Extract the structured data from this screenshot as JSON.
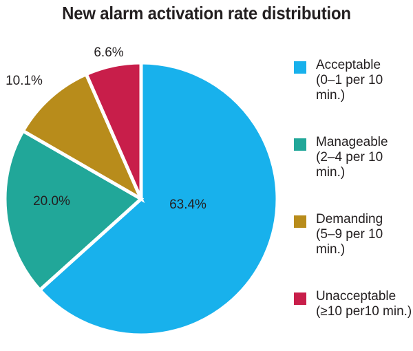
{
  "chart_data": {
    "type": "pie",
    "title": "New alarm activation rate distribution",
    "slices": [
      {
        "name": "Acceptable",
        "range": "(0–1 per 10 min.)",
        "value": 63.4,
        "label": "63.4%",
        "color": "#18b1ec"
      },
      {
        "name": "Manageable",
        "range": "(2–4 per 10 min.)",
        "value": 20.0,
        "label": "20.0%",
        "color": "#21a799"
      },
      {
        "name": "Demanding",
        "range": "(5–9 per 10 min.)",
        "value": 10.1,
        "label": "10.1%",
        "color": "#b88c1b"
      },
      {
        "name": "Unacceptable",
        "range": "(≥10 per10 min.)",
        "value": 6.6,
        "label": "6.6%",
        "color": "#c81e4a"
      }
    ],
    "legend_position": "right"
  }
}
